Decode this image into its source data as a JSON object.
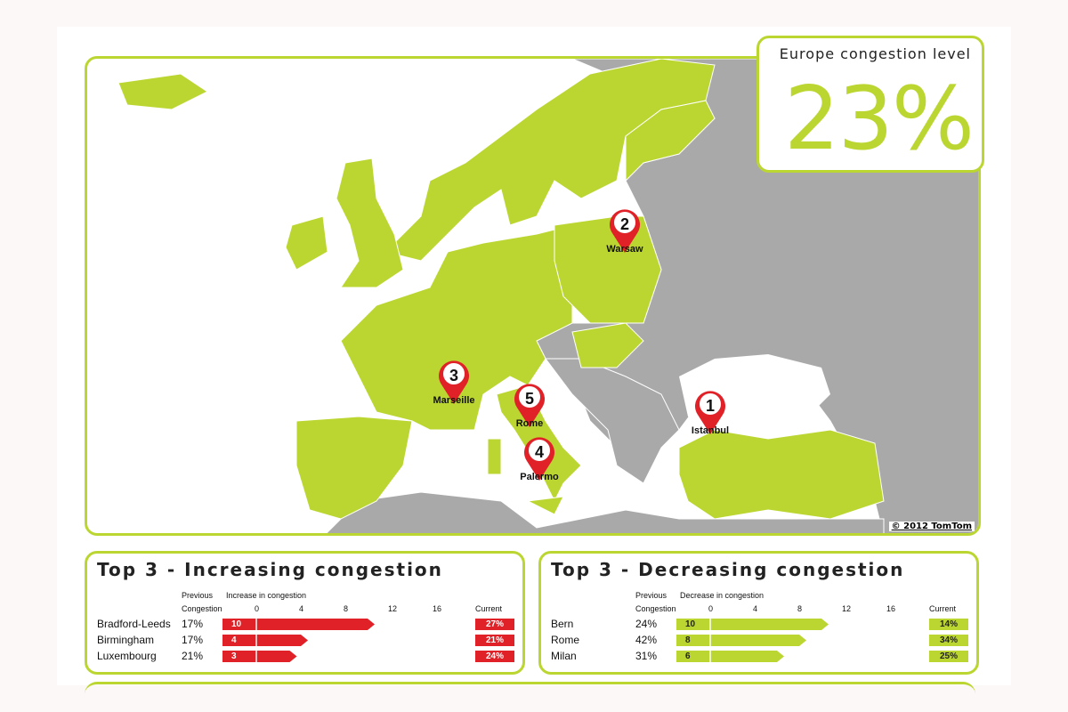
{
  "headline": {
    "title": "Europe congestion level",
    "value": "23%"
  },
  "map": {
    "copyright": "© 2012 TomTom",
    "colors": {
      "highlight": "#bcd631",
      "other_land": "#a9a9a9",
      "sea": "#ffffff",
      "pin": "#e02127"
    },
    "pins": [
      {
        "rank": "2",
        "city": "Warsaw"
      },
      {
        "rank": "3",
        "city": "Marseille"
      },
      {
        "rank": "5",
        "city": "Rome"
      },
      {
        "rank": "4",
        "city": "Palermo"
      },
      {
        "rank": "1",
        "city": "Istanbul"
      }
    ]
  },
  "chart_data": [
    {
      "type": "bar",
      "title": "Top 3 - Increasing congestion",
      "col_previous": [
        "Previous",
        "Congestion"
      ],
      "xlabel": "Increase in congestion",
      "col_current": "Current",
      "ticks": [
        "0",
        "4",
        "8",
        "12",
        "16"
      ],
      "xlim": [
        0,
        16
      ],
      "color": "#e02127",
      "categories": [
        "Bradford-Leeds",
        "Birmingham",
        "Luxembourg"
      ],
      "previous": [
        "17%",
        "17%",
        "21%"
      ],
      "values": [
        10,
        4,
        3
      ],
      "current": [
        "27%",
        "21%",
        "24%"
      ]
    },
    {
      "type": "bar",
      "title": "Top 3 - Decreasing congestion",
      "col_previous": [
        "Previous",
        "Congestion"
      ],
      "xlabel": "Decrease in congestion",
      "col_current": "Current",
      "ticks": [
        "0",
        "4",
        "8",
        "12",
        "16"
      ],
      "xlim": [
        0,
        16
      ],
      "color": "#bcd631",
      "categories": [
        "Bern",
        "Rome",
        "Milan"
      ],
      "previous": [
        "24%",
        "42%",
        "31%"
      ],
      "values": [
        10,
        8,
        6
      ],
      "current": [
        "14%",
        "34%",
        "25%"
      ]
    }
  ]
}
